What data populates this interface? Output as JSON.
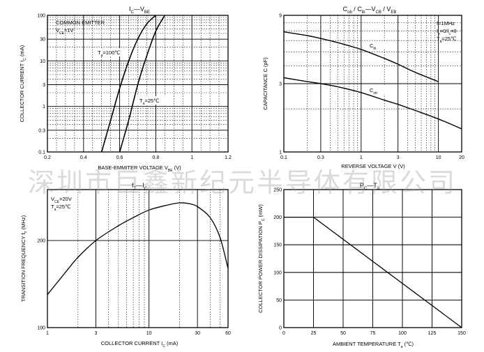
{
  "watermark": "深圳市巨鑫新纪元半导体有限公司",
  "chart_data": [
    {
      "type": "line",
      "title_parts": [
        [
          "I",
          "C"
        ],
        [
          "—",
          ""
        ],
        [
          "V",
          "BE"
        ]
      ],
      "xlabel": "BASE-EMMITER VOLTAGE",
      "xlabel_sym": [
        "V",
        "BE"
      ],
      "xlabel_unit": "(V)",
      "ylabel": "COLLECTOR CURRENT",
      "ylabel_sym": [
        "I",
        "C"
      ],
      "ylabel_unit": "(mA)",
      "x_scale": "linear",
      "y_scale": "log",
      "xlim": [
        0.2,
        1.2
      ],
      "ylim": [
        0.1,
        100
      ],
      "x_ticks": [
        0.2,
        0.4,
        0.6,
        0.8,
        1.0,
        1.2
      ],
      "x_tick_labels": [
        "0.2",
        "0.4",
        "0.6",
        "0.8",
        "1",
        "1.2"
      ],
      "y_ticks": [
        0.1,
        0.3,
        1,
        3,
        10,
        30,
        100
      ],
      "y_tick_labels": [
        "0.1",
        "0.3",
        "1",
        "3",
        "10",
        "30",
        "100"
      ],
      "notes": [
        [
          "COMMON EMITTER",
          ""
        ],
        [
          "V",
          "CE",
          "=1V"
        ]
      ],
      "series": [
        {
          "label": [
            "T",
            "a",
            "=100℃"
          ],
          "x": [
            0.5,
            0.55,
            0.6,
            0.65,
            0.7,
            0.75,
            0.8
          ],
          "y": [
            0.1,
            0.5,
            2.5,
            10,
            30,
            65,
            100
          ]
        },
        {
          "label": [
            "T",
            "a",
            "=25℃"
          ],
          "x": [
            0.6,
            0.65,
            0.7,
            0.75,
            0.8,
            0.85
          ],
          "y": [
            0.1,
            0.5,
            3,
            13,
            45,
            100
          ]
        }
      ]
    },
    {
      "type": "line",
      "title_parts": [
        [
          "C",
          "ob"
        ],
        [
          " / ",
          ""
        ],
        [
          "C",
          "ib"
        ],
        [
          "—",
          ""
        ],
        [
          "V",
          "CB"
        ],
        [
          " / ",
          ""
        ],
        [
          "V",
          "EB"
        ]
      ],
      "xlabel": "REVERSE VOLTAGE",
      "xlabel_sym": [
        "V",
        ""
      ],
      "xlabel_unit": "(V)",
      "ylabel": "CAPACITANCE",
      "ylabel_sym": [
        "C",
        ""
      ],
      "ylabel_unit": "(pF)",
      "x_scale": "log",
      "y_scale": "log",
      "xlim": [
        0.1,
        20
      ],
      "ylim": [
        1,
        9
      ],
      "x_ticks": [
        0.1,
        0.3,
        1,
        3,
        10,
        20
      ],
      "x_tick_labels": [
        "0.1",
        "0.3",
        "1",
        "3",
        "10",
        "20"
      ],
      "y_ticks": [
        1,
        3,
        9
      ],
      "y_tick_labels": [
        "1",
        "3",
        "9"
      ],
      "notes": [
        [
          "f=1MHz",
          ""
        ],
        [
          "I",
          "e",
          "=0/I",
          "c",
          "=0"
        ],
        [
          "T",
          "a",
          "=25℃"
        ]
      ],
      "series": [
        {
          "label": [
            "C",
            "ib"
          ],
          "x": [
            0.1,
            0.2,
            0.3,
            0.5,
            1,
            2,
            3,
            5,
            10
          ],
          "y": [
            6.9,
            6.5,
            6.2,
            5.8,
            5.2,
            4.5,
            4.1,
            3.6,
            3.1
          ]
        },
        {
          "label": [
            "C",
            "ob"
          ],
          "x": [
            0.1,
            0.2,
            0.3,
            0.5,
            1,
            2,
            3,
            5,
            10,
            20
          ],
          "y": [
            3.3,
            3.1,
            3.0,
            2.85,
            2.6,
            2.3,
            2.15,
            1.95,
            1.7,
            1.45
          ]
        }
      ]
    },
    {
      "type": "line",
      "title_parts": [
        [
          "f",
          "T"
        ],
        [
          "—",
          ""
        ],
        [
          "I",
          "C"
        ]
      ],
      "xlabel": "COLLECTOR CURRENT",
      "xlabel_sym": [
        "I",
        "C"
      ],
      "xlabel_unit": "(mA)",
      "ylabel": "TRANSITION FREQUENCY",
      "ylabel_sym": [
        "f",
        "T"
      ],
      "ylabel_unit": "(MHz)",
      "x_scale": "log",
      "y_scale": "log",
      "xlim": [
        1,
        60
      ],
      "ylim": [
        100,
        300
      ],
      "x_ticks": [
        1,
        3,
        10,
        30,
        60
      ],
      "x_tick_labels": [
        "1",
        "3",
        "10",
        "30",
        "60"
      ],
      "y_ticks": [
        100,
        200
      ],
      "y_tick_labels": [
        "100",
        "200"
      ],
      "notes": [
        [
          "V",
          "CE",
          "=20V"
        ],
        [
          "T",
          "a",
          "=25℃"
        ]
      ],
      "series": [
        {
          "label": null,
          "x": [
            1,
            1.5,
            2,
            3,
            5,
            7,
            10,
            15,
            20,
            25,
            30,
            40,
            50,
            60
          ],
          "y": [
            130,
            155,
            175,
            200,
            225,
            240,
            255,
            265,
            270,
            268,
            262,
            240,
            205,
            160
          ]
        }
      ]
    },
    {
      "type": "line",
      "title_parts": [
        [
          "P",
          "C"
        ],
        [
          "—",
          ""
        ],
        [
          "T",
          "a"
        ]
      ],
      "xlabel": "AMBIENT TEMPERATURE",
      "xlabel_sym": [
        "T",
        "a"
      ],
      "xlabel_unit": "(℃)",
      "ylabel": "COLLECTOR POWER DISSIPATION",
      "ylabel_sym": [
        "P",
        "C"
      ],
      "ylabel_unit": "(mW)",
      "x_scale": "linear",
      "y_scale": "linear",
      "xlim": [
        0,
        150
      ],
      "ylim": [
        0,
        250
      ],
      "x_ticks": [
        0,
        25,
        50,
        75,
        100,
        125,
        150
      ],
      "x_tick_labels": [
        "0",
        "25",
        "50",
        "75",
        "100",
        "125",
        "150"
      ],
      "y_ticks": [
        0,
        50,
        100,
        150,
        200,
        250
      ],
      "y_tick_labels": [
        "0",
        "50",
        "100",
        "150",
        "200",
        "250"
      ],
      "notes": [],
      "series": [
        {
          "label": null,
          "x": [
            0,
            25,
            150
          ],
          "y": [
            200,
            200,
            0
          ]
        }
      ]
    }
  ]
}
